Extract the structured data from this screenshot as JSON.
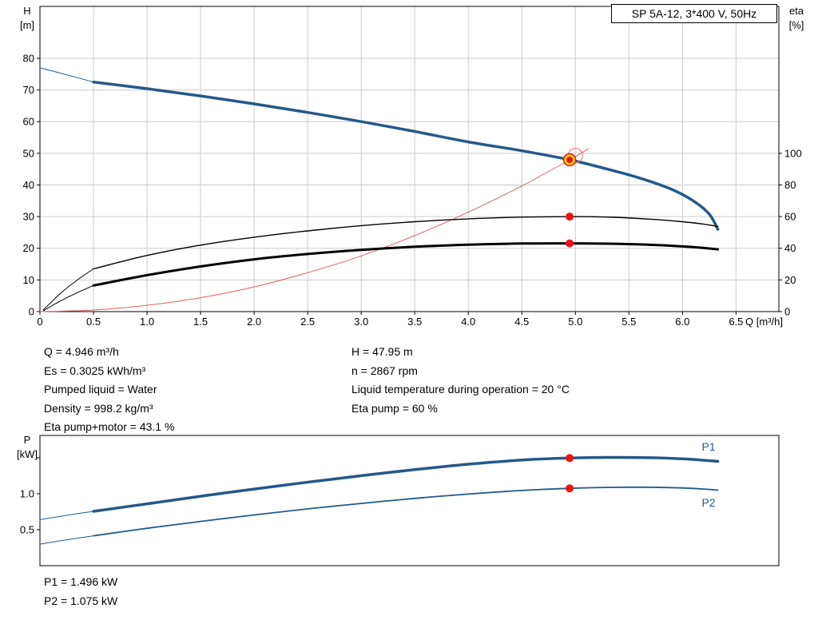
{
  "title_box": "SP 5A-12, 3*400 V, 50Hz",
  "info_block": {
    "left": [
      "Q = 4.946 m³/h",
      "Es = 0.3025 kWh/m³",
      "Pumped liquid = Water",
      "Density = 998.2 kg/m³",
      "Eta pump+motor = 43.1 %"
    ],
    "right": [
      "H = 47.95 m",
      "n = 2867 rpm",
      "Liquid temperature during operation = 20 °C",
      "Eta pump = 60 %"
    ]
  },
  "power_block": [
    "P1 = 1.496 kW",
    "P2 = 1.075 kW"
  ],
  "colors": {
    "blue": "#24598a",
    "red": "#ee1111",
    "red_light": "#e98080",
    "system_red": "#e06060",
    "yellow": "#ffd400",
    "grid": "#cccccc",
    "black": "#000000"
  },
  "chart_data": [
    {
      "type": "line",
      "title": "SP 5A-12, 3*400 V, 50Hz",
      "xlabel": "Q [m³/h]",
      "ylabel_left": [
        "H",
        "[m]"
      ],
      "ylabel_right": [
        "eta",
        "[%]"
      ],
      "xlim": [
        0,
        6.9
      ],
      "ylim_left": [
        0,
        96.4
      ],
      "ylim_right": [
        0,
        192.8
      ],
      "grid": true,
      "legend": "none",
      "x_ticks": [
        {
          "v": 0,
          "label": "0"
        },
        {
          "v": 0.5,
          "label": "0.5"
        },
        {
          "v": 1,
          "label": "1.0"
        },
        {
          "v": 1.5,
          "label": "1.5"
        },
        {
          "v": 2,
          "label": "2.0"
        },
        {
          "v": 2.5,
          "label": "2.5"
        },
        {
          "v": 3,
          "label": "3.0"
        },
        {
          "v": 3.5,
          "label": "3.5"
        },
        {
          "v": 4,
          "label": "4.0"
        },
        {
          "v": 4.5,
          "label": "4.5"
        },
        {
          "v": 5,
          "label": "5.0"
        },
        {
          "v": 5.5,
          "label": "5.5"
        },
        {
          "v": 6,
          "label": "6.0"
        },
        {
          "v": 6.5,
          "label": "6.5"
        }
      ],
      "y_ticks_left": [
        {
          "v": 0,
          "label": "0"
        },
        {
          "v": 10,
          "label": "10"
        },
        {
          "v": 20,
          "label": "20"
        },
        {
          "v": 30,
          "label": "30"
        },
        {
          "v": 40,
          "label": "40"
        },
        {
          "v": 50,
          "label": "50"
        },
        {
          "v": 60,
          "label": "60"
        },
        {
          "v": 70,
          "label": "70"
        },
        {
          "v": 80,
          "label": "80"
        }
      ],
      "y_ticks_right": [
        {
          "v": 0,
          "label": "0"
        },
        {
          "v": 20,
          "label": "20"
        },
        {
          "v": 40,
          "label": "40"
        },
        {
          "v": 60,
          "label": "60"
        },
        {
          "v": 80,
          "label": "80"
        },
        {
          "v": 100,
          "label": "100"
        }
      ],
      "series": [
        {
          "name": "pump-head-curve",
          "axis": "left",
          "color": "#24598a",
          "width": 3.5,
          "lead": [
            [
              0,
              77
            ],
            [
              0.25,
              74.8
            ],
            [
              0.5,
              72.5
            ]
          ],
          "points": [
            [
              0.5,
              72.5
            ],
            [
              1,
              70.4
            ],
            [
              1.5,
              68.1
            ],
            [
              2,
              65.6
            ],
            [
              2.5,
              62.9
            ],
            [
              3,
              60.0
            ],
            [
              3.5,
              56.9
            ],
            [
              4,
              53.6
            ],
            [
              4.5,
              50.8
            ],
            [
              4.946,
              47.95
            ],
            [
              5.3,
              45.0
            ],
            [
              5.6,
              42.2
            ],
            [
              5.9,
              38.6
            ],
            [
              6.1,
              35.0
            ],
            [
              6.25,
              30.8
            ],
            [
              6.33,
              26.0
            ]
          ]
        },
        {
          "name": "system-curve",
          "axis": "left",
          "color": "#e06060",
          "width": 1,
          "points": [
            [
              0,
              0
            ],
            [
              0.5,
              0.5
            ],
            [
              1,
              2.0
            ],
            [
              1.5,
              4.4
            ],
            [
              2,
              7.8
            ],
            [
              2.5,
              12.3
            ],
            [
              3,
              17.6
            ],
            [
              3.5,
              24.0
            ],
            [
              4,
              31.4
            ],
            [
              4.5,
              39.7
            ],
            [
              4.946,
              47.95
            ],
            [
              5.12,
              51.4
            ]
          ]
        },
        {
          "name": "eta-pump-curve",
          "axis": "right",
          "color": "#000000",
          "width": 1.4,
          "lead": [
            [
              0.03,
              1
            ],
            [
              0.2,
              12
            ],
            [
              0.35,
              20
            ],
            [
              0.5,
              27
            ]
          ],
          "points": [
            [
              0.5,
              27
            ],
            [
              1,
              35.5
            ],
            [
              1.5,
              42
            ],
            [
              2,
              47
            ],
            [
              2.5,
              51
            ],
            [
              3,
              54.3
            ],
            [
              3.5,
              56.8
            ],
            [
              4,
              58.6
            ],
            [
              4.5,
              59.7
            ],
            [
              4.946,
              60
            ],
            [
              5.3,
              59.7
            ],
            [
              5.7,
              58.4
            ],
            [
              6,
              56.8
            ],
            [
              6.2,
              55.2
            ],
            [
              6.33,
              53.8
            ]
          ]
        },
        {
          "name": "eta-pump-motor-curve",
          "axis": "right",
          "color": "#000000",
          "width": 3,
          "lead": [
            [
              0.03,
              0.5
            ],
            [
              0.2,
              7
            ],
            [
              0.35,
              12
            ],
            [
              0.5,
              16.5
            ]
          ],
          "points": [
            [
              0.5,
              16.5
            ],
            [
              1,
              23
            ],
            [
              1.5,
              28.5
            ],
            [
              2,
              33
            ],
            [
              2.5,
              36.4
            ],
            [
              3,
              39
            ],
            [
              3.5,
              41
            ],
            [
              4,
              42.3
            ],
            [
              4.5,
              43
            ],
            [
              4.946,
              43.1
            ],
            [
              5.3,
              42.9
            ],
            [
              5.7,
              42.2
            ],
            [
              6,
              41.2
            ],
            [
              6.2,
              40.2
            ],
            [
              6.33,
              39.3
            ]
          ]
        }
      ],
      "markers": [
        {
          "type": "ring",
          "axis": "left",
          "x": 5.0,
          "y": 49.3
        },
        {
          "type": "duty",
          "axis": "left",
          "x": 4.946,
          "y": 47.95
        },
        {
          "type": "dot",
          "axis": "right",
          "x": 4.946,
          "y": 60
        },
        {
          "type": "dot",
          "axis": "right",
          "x": 4.946,
          "y": 43.1
        }
      ]
    },
    {
      "type": "line",
      "title": "",
      "xlabel": "",
      "ylabel_left": [
        "P",
        "[kW]"
      ],
      "xlim": [
        0,
        6.9
      ],
      "ylim_left": [
        0,
        1.81
      ],
      "grid": false,
      "legend": "inline",
      "x_ticks": [],
      "y_ticks_left": [
        {
          "v": 0.5,
          "label": "0.5"
        },
        {
          "v": 1,
          "label": "1.0"
        },
        {
          "v": 1.5,
          "label": ""
        }
      ],
      "y_ticks_right": [],
      "series": [
        {
          "name": "p1-power-curve",
          "axis": "left",
          "color": "#24598a",
          "width": 3.5,
          "lead": [
            [
              0,
              0.64
            ],
            [
              0.25,
              0.7
            ],
            [
              0.5,
              0.755
            ]
          ],
          "points": [
            [
              0.5,
              0.755
            ],
            [
              1,
              0.86
            ],
            [
              1.5,
              0.965
            ],
            [
              2,
              1.065
            ],
            [
              2.5,
              1.16
            ],
            [
              3,
              1.25
            ],
            [
              3.5,
              1.335
            ],
            [
              4,
              1.41
            ],
            [
              4.5,
              1.468
            ],
            [
              4.946,
              1.496
            ],
            [
              5.3,
              1.505
            ],
            [
              5.7,
              1.5
            ],
            [
              6,
              1.485
            ],
            [
              6.2,
              1.465
            ],
            [
              6.33,
              1.45
            ]
          ]
        },
        {
          "name": "p2-power-curve",
          "axis": "left",
          "color": "#24598a",
          "width": 1.8,
          "lead": [
            [
              0,
              0.3
            ],
            [
              0.25,
              0.36
            ],
            [
              0.5,
              0.415
            ]
          ],
          "points": [
            [
              0.5,
              0.415
            ],
            [
              1,
              0.52
            ],
            [
              1.5,
              0.615
            ],
            [
              2,
              0.705
            ],
            [
              2.5,
              0.79
            ],
            [
              3,
              0.865
            ],
            [
              3.5,
              0.935
            ],
            [
              4,
              0.995
            ],
            [
              4.5,
              1.045
            ],
            [
              4.946,
              1.075
            ],
            [
              5.3,
              1.088
            ],
            [
              5.7,
              1.09
            ],
            [
              6,
              1.08
            ],
            [
              6.2,
              1.065
            ],
            [
              6.33,
              1.05
            ]
          ]
        }
      ],
      "markers": [
        {
          "type": "dot",
          "axis": "left",
          "x": 4.946,
          "y": 1.496
        },
        {
          "type": "dot",
          "axis": "left",
          "x": 4.946,
          "y": 1.075
        }
      ],
      "series_labels": [
        {
          "text": "P1",
          "x": 6.18,
          "y": 1.6
        },
        {
          "text": "P2",
          "x": 6.18,
          "y": 0.82
        }
      ]
    }
  ]
}
